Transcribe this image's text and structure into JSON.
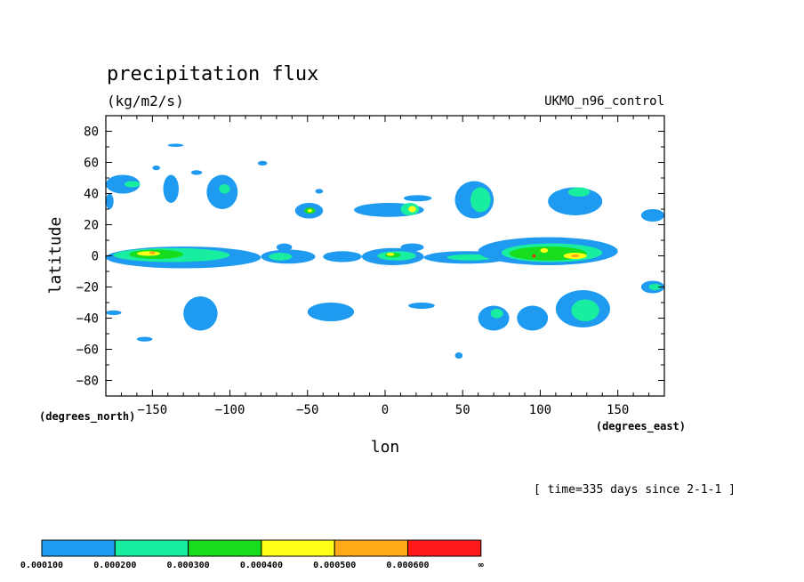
{
  "chart_data": {
    "type": "heatmap",
    "title": "precipitation flux",
    "units": "(kg/m2/s)",
    "dataset": "UKMO_n96_control",
    "xlabel": "lon",
    "ylabel": "latitude",
    "x_units": "(degrees_east)",
    "y_units": "(degrees_north)",
    "xlim": [
      -180,
      180
    ],
    "ylim": [
      -90,
      90
    ],
    "x_ticks": [
      -150,
      -100,
      -50,
      0,
      50,
      100,
      150
    ],
    "y_ticks": [
      -80,
      -60,
      -40,
      -20,
      0,
      20,
      40,
      60,
      80
    ],
    "x_tick_labels": [
      "−150",
      "−100",
      "−50",
      "0",
      "50",
      "100",
      "150"
    ],
    "y_tick_labels": [
      "−80",
      "−60",
      "−40",
      "−20",
      "0",
      "20",
      "40",
      "60",
      "80"
    ],
    "grid": false,
    "time_note": "[ time=335 days since 2-1-1 ]",
    "colorbar": {
      "colors": [
        "#1e9bf0",
        "#19eda0",
        "#18dc1e",
        "#ffff18",
        "#ffa818",
        "#ff1818"
      ],
      "labels": [
        "0.000100",
        "0.000200",
        "0.000300",
        "0.000400",
        "0.000500",
        "0.000600",
        "∞"
      ]
    },
    "features": [
      {
        "level": 1,
        "lon": [
          -180,
          -158
        ],
        "lat": [
          40,
          52
        ]
      },
      {
        "level": 2,
        "lon": [
          -168,
          -158
        ],
        "lat": [
          44,
          48
        ]
      },
      {
        "level": 1,
        "lon": [
          -180,
          -175
        ],
        "lat": [
          30,
          40
        ]
      },
      {
        "level": 1,
        "lon": [
          -150,
          -145
        ],
        "lat": [
          55,
          58
        ]
      },
      {
        "level": 1,
        "lon": [
          -140,
          -130
        ],
        "lat": [
          70,
          72
        ]
      },
      {
        "level": 1,
        "lon": [
          -143,
          -133
        ],
        "lat": [
          34,
          52
        ]
      },
      {
        "level": 1,
        "lon": [
          -125,
          -118
        ],
        "lat": [
          52,
          55
        ]
      },
      {
        "level": 1,
        "lon": [
          -115,
          -95
        ],
        "lat": [
          30,
          52
        ]
      },
      {
        "level": 2,
        "lon": [
          -107,
          -100
        ],
        "lat": [
          40,
          46
        ]
      },
      {
        "level": 1,
        "lon": [
          -82,
          -76
        ],
        "lat": [
          58,
          61
        ]
      },
      {
        "level": 1,
        "lon": [
          -58,
          -40
        ],
        "lat": [
          24,
          34
        ]
      },
      {
        "level": 3,
        "lon": [
          -52,
          -45
        ],
        "lat": [
          27,
          31
        ]
      },
      {
        "level": 4,
        "lon": [
          -50,
          -47
        ],
        "lat": [
          28,
          30
        ]
      },
      {
        "level": 1,
        "lon": [
          -45,
          -40
        ],
        "lat": [
          40,
          43
        ]
      },
      {
        "level": 1,
        "lon": [
          -20,
          25
        ],
        "lat": [
          25,
          34
        ]
      },
      {
        "level": 2,
        "lon": [
          10,
          22
        ],
        "lat": [
          26,
          34
        ]
      },
      {
        "level": 4,
        "lon": [
          15,
          20
        ],
        "lat": [
          28,
          32
        ]
      },
      {
        "level": 1,
        "lon": [
          12,
          30
        ],
        "lat": [
          35,
          39
        ]
      },
      {
        "level": 1,
        "lon": [
          45,
          70
        ],
        "lat": [
          24,
          48
        ]
      },
      {
        "level": 2,
        "lon": [
          55,
          68
        ],
        "lat": [
          28,
          44
        ]
      },
      {
        "level": 1,
        "lon": [
          105,
          140
        ],
        "lat": [
          26,
          44
        ]
      },
      {
        "level": 2,
        "lon": [
          118,
          132
        ],
        "lat": [
          38,
          44
        ]
      },
      {
        "level": 1,
        "lon": [
          165,
          180
        ],
        "lat": [
          22,
          30
        ]
      },
      {
        "level": 1,
        "lon": [
          -180,
          -80
        ],
        "lat": [
          -8,
          6
        ]
      },
      {
        "level": 2,
        "lon": [
          -175,
          -100
        ],
        "lat": [
          -4,
          5
        ]
      },
      {
        "level": 3,
        "lon": [
          -165,
          -130
        ],
        "lat": [
          -2,
          4
        ]
      },
      {
        "level": 4,
        "lon": [
          -160,
          -145
        ],
        "lat": [
          0,
          3
        ]
      },
      {
        "level": 5,
        "lon": [
          -152,
          -148
        ],
        "lat": [
          1,
          3
        ]
      },
      {
        "level": 1,
        "lon": [
          -80,
          -45
        ],
        "lat": [
          -5,
          4
        ]
      },
      {
        "level": 2,
        "lon": [
          -75,
          -60
        ],
        "lat": [
          -3,
          2
        ]
      },
      {
        "level": 1,
        "lon": [
          -70,
          -60
        ],
        "lat": [
          3,
          8
        ]
      },
      {
        "level": 1,
        "lon": [
          -40,
          -15
        ],
        "lat": [
          -4,
          3
        ]
      },
      {
        "level": 1,
        "lon": [
          -15,
          25
        ],
        "lat": [
          -6,
          5
        ]
      },
      {
        "level": 2,
        "lon": [
          -5,
          20
        ],
        "lat": [
          -3,
          3
        ]
      },
      {
        "level": 3,
        "lon": [
          0,
          10
        ],
        "lat": [
          -1,
          2
        ]
      },
      {
        "level": 4,
        "lon": [
          1,
          6
        ],
        "lat": [
          0,
          2
        ]
      },
      {
        "level": 1,
        "lon": [
          10,
          25
        ],
        "lat": [
          3,
          8
        ]
      },
      {
        "level": 1,
        "lon": [
          25,
          80
        ],
        "lat": [
          -5,
          3
        ]
      },
      {
        "level": 2,
        "lon": [
          40,
          70
        ],
        "lat": [
          -3,
          1
        ]
      },
      {
        "level": 1,
        "lon": [
          60,
          150
        ],
        "lat": [
          -6,
          12
        ]
      },
      {
        "level": 2,
        "lon": [
          75,
          140
        ],
        "lat": [
          -4,
          8
        ]
      },
      {
        "level": 3,
        "lon": [
          80,
          130
        ],
        "lat": [
          -3,
          6
        ]
      },
      {
        "level": 4,
        "lon": [
          115,
          130
        ],
        "lat": [
          -2,
          2
        ]
      },
      {
        "level": 5,
        "lon": [
          120,
          125
        ],
        "lat": [
          -1,
          1
        ]
      },
      {
        "level": 4,
        "lon": [
          100,
          105
        ],
        "lat": [
          2,
          5
        ]
      },
      {
        "level": 6,
        "lon": [
          95,
          97
        ],
        "lat": [
          -1,
          1
        ]
      },
      {
        "level": 1,
        "lon": [
          165,
          180
        ],
        "lat": [
          -24,
          -16
        ]
      },
      {
        "level": 2,
        "lon": [
          170,
          178
        ],
        "lat": [
          -22,
          -18
        ]
      },
      {
        "level": 1,
        "lon": [
          -180,
          -170
        ],
        "lat": [
          -38,
          -35
        ]
      },
      {
        "level": 1,
        "lon": [
          -130,
          -108
        ],
        "lat": [
          -48,
          -26
        ]
      },
      {
        "level": 1,
        "lon": [
          -160,
          -150
        ],
        "lat": [
          -55,
          -52
        ]
      },
      {
        "level": 1,
        "lon": [
          -50,
          -20
        ],
        "lat": [
          -42,
          -30
        ]
      },
      {
        "level": 1,
        "lon": [
          15,
          32
        ],
        "lat": [
          -34,
          -30
        ]
      },
      {
        "level": 1,
        "lon": [
          60,
          80
        ],
        "lat": [
          -48,
          -32
        ]
      },
      {
        "level": 2,
        "lon": [
          68,
          76
        ],
        "lat": [
          -40,
          -34
        ]
      },
      {
        "level": 1,
        "lon": [
          85,
          105
        ],
        "lat": [
          -48,
          -32
        ]
      },
      {
        "level": 1,
        "lon": [
          110,
          145
        ],
        "lat": [
          -46,
          -22
        ]
      },
      {
        "level": 2,
        "lon": [
          120,
          138
        ],
        "lat": [
          -42,
          -28
        ]
      },
      {
        "level": 1,
        "lon": [
          45,
          50
        ],
        "lat": [
          -66,
          -62
        ]
      }
    ]
  }
}
